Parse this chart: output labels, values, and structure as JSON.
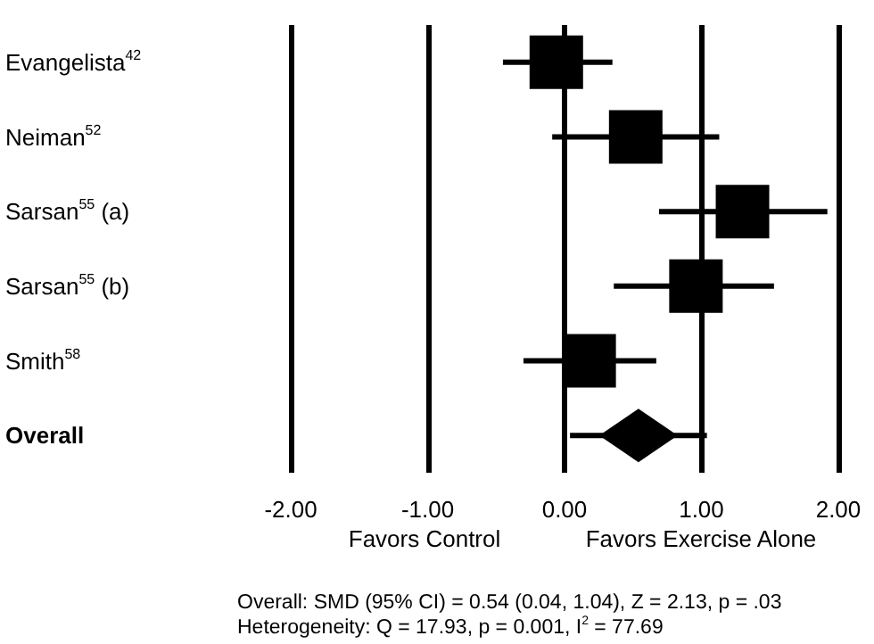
{
  "chart_data": {
    "type": "scatter",
    "orientation": "horizontal",
    "categories": [
      "Evangelista$^{42}$",
      "Neiman$^{52}$",
      "Sarsan$^{55}$ (a)",
      "Sarsan$^{55}$ (b)",
      "Smith$^{58}$",
      "Overall"
    ],
    "series": [
      {
        "color": "#000000",
        "marker": "square",
        "values": [
          -0.06,
          0.52,
          1.3,
          0.96,
          0.18,
          null
        ],
        "errors": [
          [
            -0.45,
            0.35
          ],
          [
            -0.09,
            1.13
          ],
          [
            0.69,
            1.92
          ],
          [
            0.36,
            1.53
          ],
          [
            -0.3,
            0.67
          ],
          null
        ]
      },
      {
        "color": "#000000",
        "marker": "diamond",
        "values": [
          null,
          null,
          null,
          null,
          null,
          0.54
        ],
        "errors": [
          null,
          null,
          null,
          null,
          null,
          [
            0.04,
            1.04
          ]
        ]
      }
    ],
    "xlim": [
      -2,
      2
    ],
    "xticks": [
      {
        "value": -2,
        "label": "-2.00"
      },
      {
        "value": -1,
        "label": "-1.00"
      },
      {
        "value": 0,
        "label": "0.00"
      },
      {
        "value": 1,
        "label": "1.00"
      },
      {
        "value": 2,
        "label": "2.00"
      }
    ],
    "grid": "x",
    "annotations": [
      "Favors Control",
      "Favors Exercise Alone",
      "Overall: SMD (95% CI) = 0.54 (0.04, 1.04), Z = 2.13, p = .03",
      "Heterogeneity: Q = 17.93, p = 0.001, I$^{2}$ = 77.69"
    ]
  }
}
